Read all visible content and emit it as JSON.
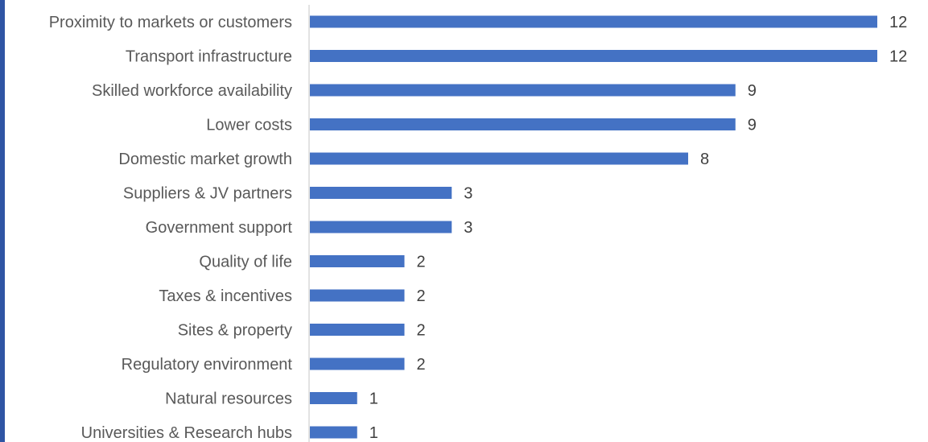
{
  "chart_data": {
    "type": "bar",
    "orientation": "horizontal",
    "title": "",
    "xlabel": "",
    "ylabel": "",
    "categories": [
      "Proximity to markets or customers",
      "Transport infrastructure",
      "Skilled workforce availability",
      "Lower costs",
      "Domestic market growth",
      "Suppliers & JV partners",
      "Government support",
      "Quality of life",
      "Taxes & incentives",
      "Sites & property",
      "Regulatory environment",
      "Natural resources",
      "Universities & Research hubs"
    ],
    "values": [
      12,
      12,
      9,
      9,
      8,
      3,
      3,
      2,
      2,
      2,
      2,
      1,
      1
    ],
    "xlim": [
      0,
      12
    ],
    "grid": false,
    "legend": "none",
    "data_labels": true,
    "bar_color": "#4472c4",
    "axis_color": "#d9d9d9",
    "edge_color": "#2f55a4"
  }
}
